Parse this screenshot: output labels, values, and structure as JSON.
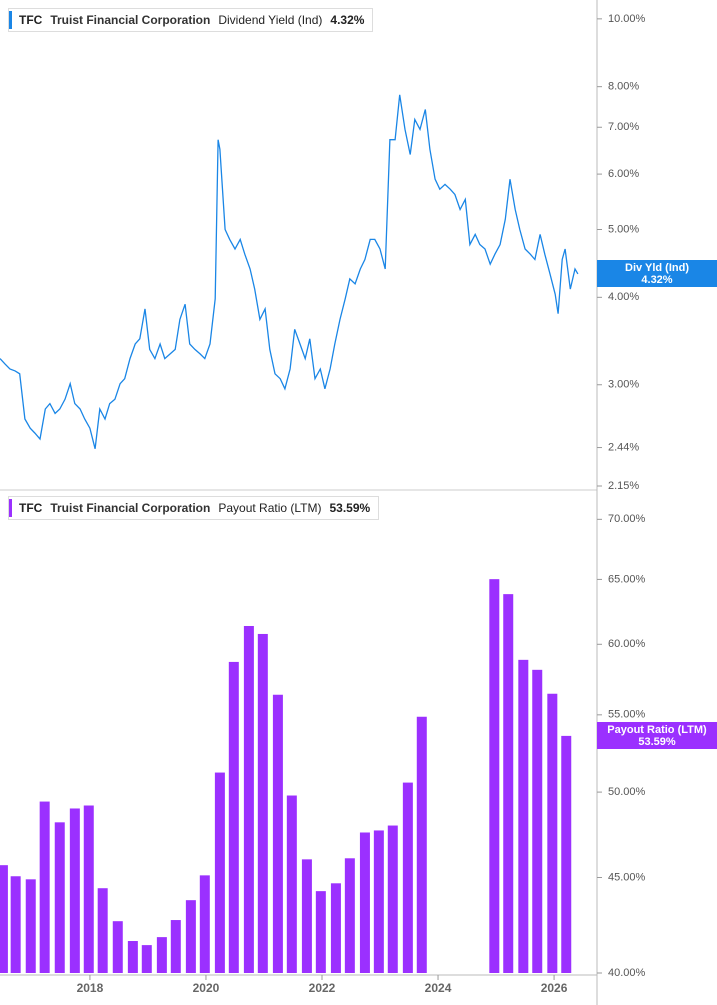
{
  "chart_data": [
    {
      "type": "line",
      "ticker": "TFC",
      "company": "Truist Financial Corporation",
      "metric": "Dividend Yield (Ind)",
      "current": {
        "value": 4.32,
        "label": "4.32%"
      },
      "tag_label": "Div Yld (Ind)",
      "color": "#1a86e6",
      "log_scale": true,
      "xlim": [
        2016.45,
        2026.74
      ],
      "ylim": [
        2.15,
        10.64
      ],
      "yticks": [
        {
          "value": 10,
          "label": "10.00%"
        },
        {
          "value": 8,
          "label": "8.00%"
        },
        {
          "value": 7,
          "label": "7.00%"
        },
        {
          "value": 6,
          "label": "6.00%"
        },
        {
          "value": 5,
          "label": "5.00%"
        },
        {
          "value": 4,
          "label": "4.00%"
        },
        {
          "value": 3,
          "label": "3.00%"
        },
        {
          "value": 2.44,
          "label": "2.44%"
        },
        {
          "value": 2.15,
          "label": "2.15%"
        }
      ],
      "x": [
        2016.45,
        2016.54,
        2016.62,
        2016.71,
        2016.79,
        2016.88,
        2016.97,
        2017.05,
        2017.14,
        2017.23,
        2017.31,
        2017.4,
        2017.48,
        2017.57,
        2017.66,
        2017.74,
        2017.83,
        2017.91,
        2018.0,
        2018.09,
        2018.17,
        2018.26,
        2018.34,
        2018.43,
        2018.52,
        2018.6,
        2018.69,
        2018.78,
        2018.86,
        2018.95,
        2019.03,
        2019.12,
        2019.21,
        2019.29,
        2019.38,
        2019.47,
        2019.55,
        2019.64,
        2019.72,
        2019.81,
        2019.9,
        2019.98,
        2020.07,
        2020.16,
        2020.21,
        2020.24,
        2020.33,
        2020.41,
        2020.5,
        2020.59,
        2020.67,
        2020.76,
        2020.84,
        2020.93,
        2021.02,
        2021.1,
        2021.19,
        2021.28,
        2021.36,
        2021.45,
        2021.53,
        2021.62,
        2021.71,
        2021.79,
        2021.88,
        2021.97,
        2022.05,
        2022.14,
        2022.22,
        2022.31,
        2022.4,
        2022.48,
        2022.57,
        2022.66,
        2022.74,
        2022.83,
        2022.91,
        2023.0,
        2023.09,
        2023.17,
        2023.26,
        2023.34,
        2023.43,
        2023.52,
        2023.6,
        2023.69,
        2023.78,
        2023.86,
        2023.95,
        2024.03,
        2024.12,
        2024.21,
        2024.29,
        2024.38,
        2024.47,
        2024.55,
        2024.64,
        2024.72,
        2024.81,
        2024.9,
        2024.98,
        2025.07,
        2025.16,
        2025.24,
        2025.33,
        2025.41,
        2025.5,
        2025.59,
        2025.67,
        2025.76,
        2025.84,
        2025.93,
        2026.02,
        2026.07,
        2026.14,
        2026.19,
        2026.28,
        2026.36,
        2026.41
      ],
      "values": [
        3.27,
        3.21,
        3.16,
        3.14,
        3.11,
        2.68,
        2.6,
        2.56,
        2.51,
        2.77,
        2.82,
        2.73,
        2.77,
        2.86,
        3.01,
        2.82,
        2.77,
        2.68,
        2.6,
        2.43,
        2.77,
        2.68,
        2.82,
        2.86,
        3.01,
        3.06,
        3.27,
        3.43,
        3.49,
        3.85,
        3.37,
        3.27,
        3.43,
        3.27,
        3.32,
        3.37,
        3.72,
        3.91,
        3.43,
        3.37,
        3.32,
        3.27,
        3.43,
        3.98,
        6.72,
        6.51,
        5.0,
        4.84,
        4.69,
        4.84,
        4.61,
        4.39,
        4.11,
        3.72,
        3.85,
        3.37,
        3.11,
        3.06,
        2.96,
        3.16,
        3.6,
        3.43,
        3.27,
        3.49,
        3.06,
        3.16,
        2.96,
        3.16,
        3.43,
        3.72,
        3.98,
        4.25,
        4.18,
        4.39,
        4.53,
        4.84,
        4.84,
        4.69,
        4.39,
        6.72,
        6.72,
        7.79,
        6.95,
        6.4,
        7.18,
        6.95,
        7.42,
        6.51,
        5.9,
        5.71,
        5.8,
        5.71,
        5.61,
        5.34,
        5.52,
        4.76,
        4.92,
        4.76,
        4.69,
        4.46,
        4.61,
        4.76,
        5.17,
        5.9,
        5.34,
        5.0,
        4.69,
        4.61,
        4.53,
        4.92,
        4.61,
        4.32,
        4.04,
        3.79,
        4.53,
        4.69,
        4.11,
        4.39,
        4.32
      ]
    },
    {
      "type": "bar",
      "ticker": "TFC",
      "company": "Truist Financial Corporation",
      "metric": "Payout Ratio (LTM)",
      "current": {
        "value": 53.59,
        "label": "53.59%"
      },
      "tag_label": "Payout Ratio (LTM)",
      "color": "#9b30ff",
      "log_scale": true,
      "xlim": [
        2016.45,
        2026.74
      ],
      "ylim": [
        40,
        72.4
      ],
      "yticks": [
        {
          "value": 70,
          "label": "70.00%"
        },
        {
          "value": 65,
          "label": "65.00%"
        },
        {
          "value": 60,
          "label": "60.00%"
        },
        {
          "value": 55,
          "label": "55.00%"
        },
        {
          "value": 50,
          "label": "50.00%"
        },
        {
          "value": 45,
          "label": "45.00%"
        },
        {
          "value": 40,
          "label": "40.00%"
        }
      ],
      "xticks": [
        2018,
        2020,
        2022,
        2024,
        2026
      ],
      "x": [
        2016.5,
        2016.72,
        2016.98,
        2017.22,
        2017.48,
        2017.74,
        2017.98,
        2018.22,
        2018.48,
        2018.74,
        2018.98,
        2019.24,
        2019.48,
        2019.74,
        2019.98,
        2020.24,
        2020.48,
        2020.74,
        2020.98,
        2021.24,
        2021.48,
        2021.74,
        2021.98,
        2022.24,
        2022.48,
        2022.74,
        2022.98,
        2023.22,
        2023.48,
        2023.72,
        2024.97,
        2025.21,
        2025.47,
        2025.71,
        2025.97,
        2026.21
      ],
      "values": [
        45.69,
        45.07,
        44.9,
        49.42,
        48.17,
        49.0,
        49.18,
        44.41,
        42.64,
        41.61,
        41.4,
        41.81,
        42.7,
        43.76,
        45.12,
        51.22,
        58.71,
        61.37,
        60.77,
        56.38,
        49.79,
        46.02,
        44.25,
        44.68,
        46.08,
        47.57,
        47.69,
        47.98,
        50.59,
        54.87,
        65.02,
        63.83,
        58.86,
        58.14,
        56.45,
        53.59
      ]
    }
  ]
}
